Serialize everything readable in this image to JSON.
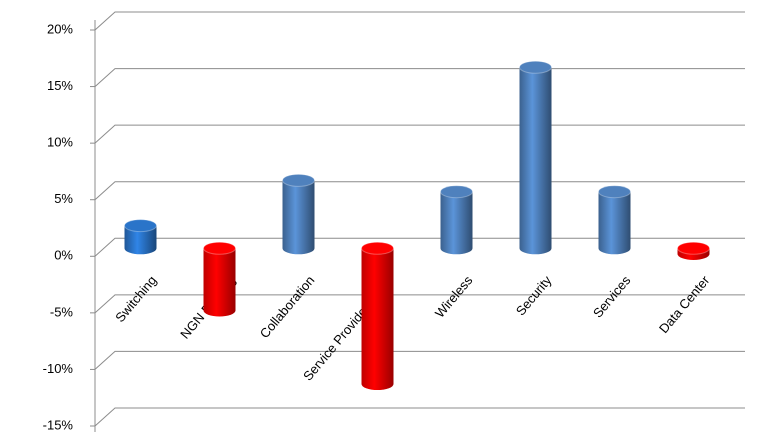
{
  "chart_data": {
    "type": "bar",
    "categories": [
      "Switching",
      "NGN Routing",
      "Collaboration",
      "Service Provider Video",
      "Wireless",
      "Security",
      "Services",
      "Data Center"
    ],
    "values": [
      2,
      -5.5,
      6,
      -12,
      5,
      16,
      5,
      -0.5
    ],
    "colors": [
      "#2a74c9",
      "#ff0000",
      "#4f81bd",
      "#ff0000",
      "#4f81bd",
      "#4f81bd",
      "#4f81bd",
      "#ff0000"
    ],
    "ylim": [
      -15,
      20
    ],
    "yticks": [
      {
        "value": -15,
        "label": "-15%"
      },
      {
        "value": -10,
        "label": "-10%"
      },
      {
        "value": -5,
        "label": "-5%"
      },
      {
        "value": 0,
        "label": "0%"
      },
      {
        "value": 5,
        "label": "5%"
      },
      {
        "value": 10,
        "label": "10%"
      },
      {
        "value": 15,
        "label": "15%"
      },
      {
        "value": 20,
        "label": "20%"
      }
    ],
    "grid": true
  }
}
